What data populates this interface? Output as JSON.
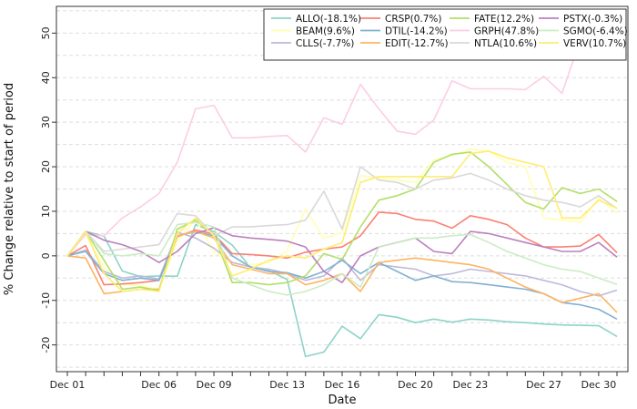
{
  "chart_data": {
    "type": "line",
    "title": "",
    "xlabel": "Date",
    "ylabel": "% Change relative to start of period",
    "ylim": [
      -26,
      56
    ],
    "yticks": [
      -20,
      -10,
      0,
      10,
      20,
      30,
      40,
      50
    ],
    "grid": "horizontal dashed",
    "legend_position": "top-right",
    "x_tick_labels": [
      "Dec 01",
      "Dec 06",
      "Dec 09",
      "Dec 13",
      "Dec 16",
      "Dec 20",
      "Dec 23",
      "Dec 27",
      "Dec 30"
    ],
    "x": [
      "Dec 01",
      "Dec 02",
      "Dec 03",
      "Dec 04",
      "Dec 05",
      "Dec 06",
      "Dec 07",
      "Dec 08",
      "Dec 09",
      "Dec 10",
      "Dec 11",
      "Dec 12",
      "Dec 13",
      "Dec 14",
      "Dec 15",
      "Dec 16",
      "Dec 17",
      "Dec 18",
      "Dec 19",
      "Dec 20",
      "Dec 21",
      "Dec 22",
      "Dec 23",
      "Dec 24",
      "Dec 25",
      "Dec 26",
      "Dec 27",
      "Dec 28",
      "Dec 29",
      "Dec 30",
      "Dec 31"
    ],
    "series": [
      {
        "name": "ALLO(-18.1%)",
        "color": "#8dd3c7",
        "values": [
          0,
          5.5,
          4.4,
          -3.4,
          -4.7,
          -4.5,
          -4.6,
          7.0,
          5.4,
          2.4,
          -2.6,
          -3.3,
          -5.3,
          -22.6,
          -21.6,
          -15.8,
          -18.6,
          -13.2,
          -13.8,
          -15.0,
          -14.2,
          -14.9,
          -14.2,
          -14.4,
          -14.8,
          -15.0,
          -15.3,
          -15.5,
          -15.6,
          -15.7,
          -18.1
        ]
      },
      {
        "name": "BEAM(9.6%)",
        "color": "#ffffb3",
        "values": [
          0,
          4.7,
          -2.6,
          -6.5,
          -6.7,
          -7.5,
          3.3,
          8.1,
          0.9,
          -1.6,
          -2.0,
          -1.5,
          1.2,
          10.5,
          3.9,
          5.3,
          18.0,
          17.5,
          17.0,
          16.5,
          21.5,
          22.5,
          24.0,
          23.5,
          21.0,
          20.0,
          8.5,
          8.0,
          7.5,
          13.0,
          9.6
        ]
      },
      {
        "name": "CLLS(-7.7%)",
        "color": "#bebada",
        "values": [
          0,
          1.3,
          -3.5,
          -5.0,
          -4.5,
          -5.2,
          5.3,
          4.0,
          1.7,
          -1.5,
          -2.5,
          -3.0,
          -4.0,
          -5.5,
          -4.5,
          -0.5,
          -5.5,
          -2.0,
          -2.5,
          -3.0,
          -4.5,
          -4.0,
          -3.0,
          -3.5,
          -4.0,
          -4.5,
          -5.5,
          -6.5,
          -8.0,
          -9.0,
          -7.7
        ]
      },
      {
        "name": "CRSP(0.7%)",
        "color": "#fb8072",
        "values": [
          0,
          2.3,
          -6.5,
          -6.3,
          -6.0,
          -5.5,
          4.3,
          5.8,
          4.9,
          0.5,
          0.3,
          0.0,
          -0.5,
          0.8,
          1.5,
          2.0,
          4.5,
          9.8,
          9.5,
          8.2,
          7.8,
          6.2,
          9.0,
          8.2,
          7.0,
          4.0,
          2.0,
          2.0,
          2.2,
          4.8,
          0.7
        ]
      },
      {
        "name": "DTIL(-14.2%)",
        "color": "#80b1d3",
        "values": [
          0,
          1.0,
          -4.0,
          -5.5,
          -5.0,
          -5.5,
          4.5,
          5.4,
          4.5,
          0.0,
          -2.5,
          -3.5,
          -3.8,
          -5.0,
          -3.5,
          -1.0,
          -4.0,
          -1.5,
          -3.5,
          -5.5,
          -4.5,
          -5.8,
          -6.0,
          -6.5,
          -7.0,
          -7.5,
          -8.5,
          -10.5,
          -11.0,
          -12.0,
          -14.2
        ]
      },
      {
        "name": "EDIT(-12.7%)",
        "color": "#fdb462",
        "values": [
          0,
          -0.5,
          -8.5,
          -8.0,
          -7.5,
          -7.5,
          4.5,
          5.5,
          4.0,
          -2.0,
          -3.0,
          -4.0,
          -4.0,
          -6.5,
          -5.5,
          -4.0,
          -8.0,
          -1.5,
          -1.0,
          -0.5,
          -1.0,
          -1.5,
          -2.0,
          -3.0,
          -5.0,
          -7.0,
          -8.5,
          -10.5,
          -9.5,
          -8.5,
          -12.7
        ]
      },
      {
        "name": "FATE(12.2%)",
        "color": "#b3de69",
        "values": [
          0,
          5.5,
          -1.0,
          -7.5,
          -7.0,
          -7.8,
          6.0,
          8.0,
          4.8,
          -6.0,
          -6.0,
          -6.5,
          -6.0,
          -4.5,
          0.5,
          -0.8,
          6.5,
          12.5,
          13.5,
          15.0,
          21.0,
          22.8,
          23.3,
          20.0,
          16.0,
          12.0,
          10.5,
          15.3,
          14.0,
          15.0,
          12.2
        ]
      },
      {
        "name": "GRPH(47.8%)",
        "color": "#fccde5",
        "values": [
          0,
          4.8,
          4.5,
          8.5,
          11.0,
          14.0,
          21.0,
          33.0,
          33.8,
          26.5,
          26.5,
          26.8,
          27.0,
          23.3,
          31.0,
          29.5,
          38.5,
          33.0,
          28.0,
          27.3,
          30.5,
          39.3,
          37.5,
          37.5,
          37.5,
          37.3,
          40.3,
          36.5,
          48.5,
          48.0,
          47.8
        ]
      },
      {
        "name": "NTLA(10.6%)",
        "color": "#d9d9d9",
        "values": [
          0,
          5.5,
          1.0,
          1.5,
          2.0,
          2.5,
          9.5,
          9.0,
          4.5,
          6.5,
          6.5,
          6.8,
          7.0,
          8.0,
          14.5,
          6.0,
          20.0,
          17.0,
          16.5,
          15.0,
          17.0,
          17.5,
          18.5,
          17.0,
          15.0,
          13.5,
          12.5,
          12.0,
          11.0,
          13.5,
          10.6
        ]
      },
      {
        "name": "PSTX(-0.3%)",
        "color": "#bc80bd",
        "values": [
          0,
          5.5,
          3.5,
          2.5,
          1.0,
          -1.5,
          1.0,
          5.0,
          6.3,
          4.5,
          4.0,
          3.7,
          3.3,
          2.0,
          -3.5,
          -6.0,
          0.0,
          2.0,
          3.0,
          4.0,
          1.0,
          0.5,
          5.5,
          5.0,
          4.0,
          3.0,
          2.0,
          1.0,
          1.0,
          3.0,
          -0.3
        ]
      },
      {
        "name": "SGMO(-6.4%)",
        "color": "#ccebc5",
        "values": [
          0,
          5.5,
          0.5,
          0.0,
          0.5,
          0.0,
          7.0,
          7.5,
          6.5,
          -5.0,
          -6.5,
          -8.0,
          -8.8,
          -8.0,
          -6.5,
          -4.0,
          -7.0,
          2.0,
          3.0,
          4.0,
          4.0,
          4.5,
          4.8,
          3.0,
          1.0,
          -0.5,
          -2.0,
          -3.0,
          -3.5,
          -5.0,
          -6.4
        ]
      },
      {
        "name": "VERV(10.7%)",
        "color": "#ffed6f",
        "values": [
          0,
          5.5,
          -4.0,
          -8.0,
          -7.5,
          -8.0,
          5.0,
          8.5,
          4.5,
          -4.5,
          -3.0,
          -1.0,
          0.0,
          -0.5,
          1.5,
          3.0,
          16.5,
          17.8,
          17.8,
          17.8,
          17.8,
          17.8,
          23.0,
          23.5,
          22.0,
          21.0,
          20.0,
          8.5,
          8.5,
          12.5,
          10.7
        ]
      }
    ]
  }
}
